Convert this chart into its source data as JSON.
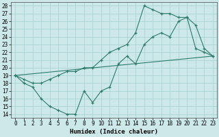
{
  "xlabel": "Humidex (Indice chaleur)",
  "xlim": [
    -0.5,
    23.5
  ],
  "ylim": [
    13.5,
    28.5
  ],
  "xticks": [
    0,
    1,
    2,
    3,
    4,
    5,
    6,
    7,
    8,
    9,
    10,
    11,
    12,
    13,
    14,
    15,
    16,
    17,
    18,
    19,
    20,
    21,
    22,
    23
  ],
  "yticks": [
    14,
    15,
    16,
    17,
    18,
    19,
    20,
    21,
    22,
    23,
    24,
    25,
    26,
    27,
    28
  ],
  "bg_color": "#cce8e8",
  "grid_color": "#aad4d4",
  "line_color": "#2d7a6a",
  "line1_x": [
    0,
    1,
    2,
    3,
    4,
    5,
    6,
    7,
    8,
    9,
    10,
    11,
    12,
    13,
    14,
    15,
    16,
    17,
    18,
    19,
    20,
    21,
    22,
    23
  ],
  "line1_y": [
    19,
    18,
    17.5,
    16,
    15,
    14.5,
    14,
    14,
    17,
    15.5,
    17,
    17.5,
    20.5,
    21.5,
    20.5,
    23,
    24,
    24.5,
    24,
    26,
    26.5,
    22.5,
    22,
    21.5
  ],
  "line2_x": [
    0,
    1,
    2,
    3,
    4,
    5,
    6,
    7,
    8,
    9,
    10,
    11,
    12,
    13,
    14,
    15,
    16,
    17,
    18,
    19,
    20,
    21,
    22,
    23
  ],
  "line2_y": [
    19,
    18.5,
    18,
    18,
    18.5,
    19,
    19.5,
    19.5,
    20,
    20,
    21,
    22,
    22.5,
    23,
    24.5,
    28,
    27.5,
    27,
    27,
    26.5,
    26.5,
    25.5,
    22.5,
    21.5
  ],
  "line3_x": [
    0,
    23
  ],
  "line3_y": [
    19,
    21.5
  ],
  "tick_fontsize": 5.5,
  "xlabel_fontsize": 6.5
}
